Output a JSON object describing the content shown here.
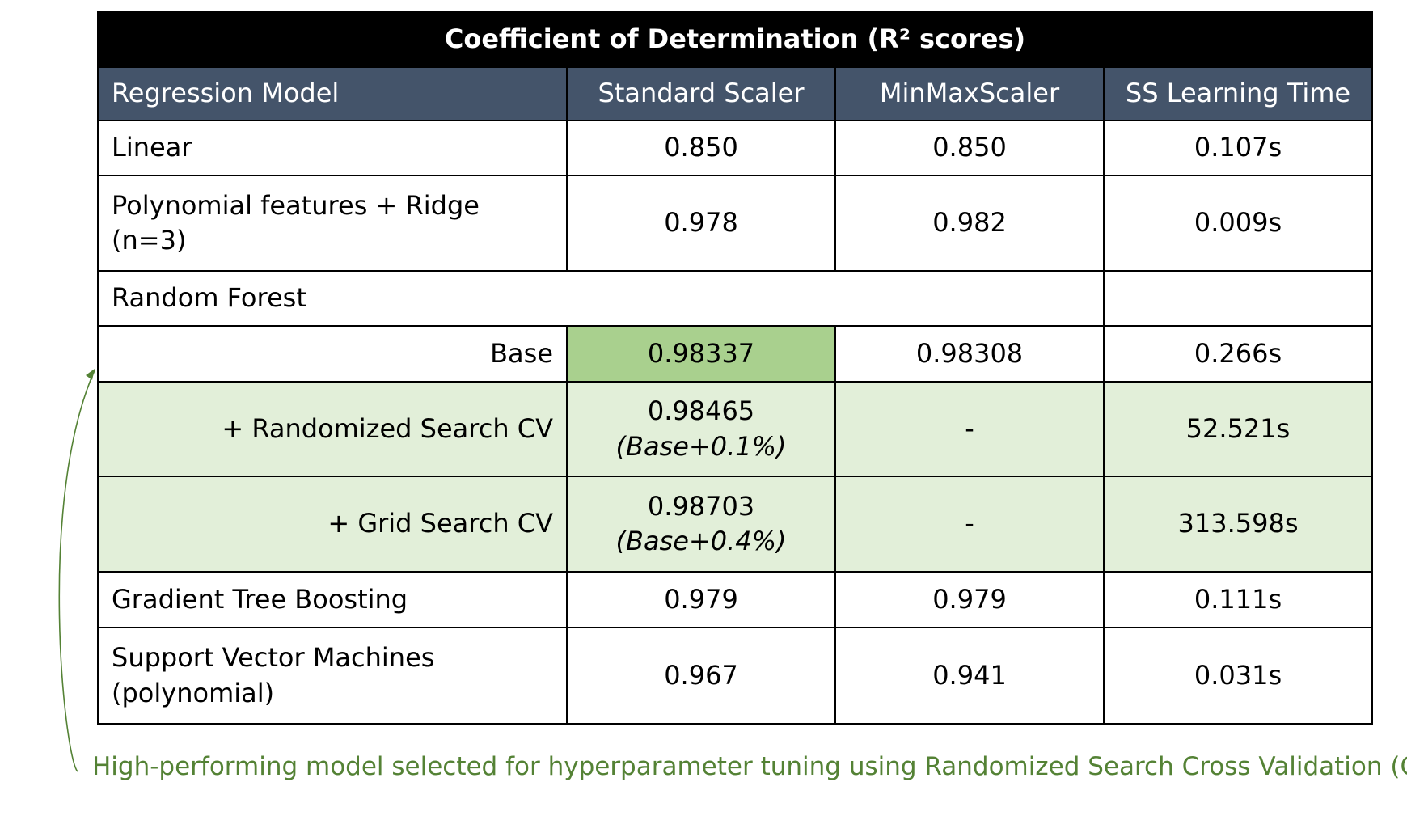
{
  "table": {
    "title": "Coefficient of Determination (R² scores)",
    "header": [
      "Regression Model",
      "Standard Scaler",
      "MinMaxScaler",
      "SS Learning Time"
    ],
    "rows": [
      [
        [
          "Linear"
        ],
        "0.850",
        "0.850",
        "0.107s"
      ],
      [
        [
          "Polynomial features + Ridge",
          "(n=3)"
        ],
        "0.978",
        "0.982",
        "0.009s"
      ],
      [
        [
          "Random Forest"
        ]
      ],
      [
        [
          "Base"
        ],
        "0.98337",
        "0.98308",
        "0.266s"
      ],
      [
        [
          "+ Randomized Search CV"
        ],
        {
          "value": "0.98465",
          "note": "(Base+0.1%)"
        },
        "-",
        "52.521s"
      ],
      [
        [
          "+ Grid Search CV"
        ],
        {
          "value": "0.98703",
          "note": "(Base+0.4%)"
        },
        "-",
        "313.598s"
      ],
      [
        [
          "Gradient Tree Boosting"
        ],
        "0.979",
        "0.979",
        "0.111s"
      ],
      [
        [
          "Support Vector Machines",
          "(polynomial)"
        ],
        "0.967",
        "0.941",
        "0.031s"
      ]
    ]
  },
  "annotation": "High-performing model selected for hyperparameter tuning using Randomized Search Cross Validation (CV)"
}
